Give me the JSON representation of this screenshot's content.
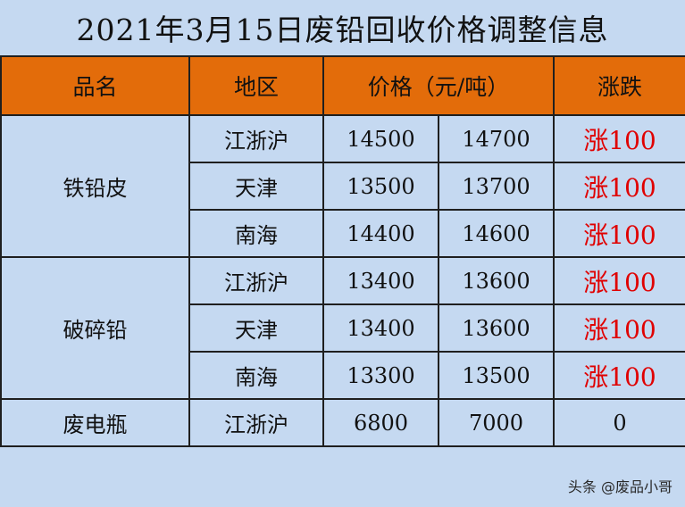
{
  "title": "2021年3月15日废铅回收价格调整信息",
  "headers": {
    "product": "品名",
    "region": "地区",
    "price": "价格（元/吨）",
    "change": "涨跌"
  },
  "groups": [
    {
      "product": "铁铅皮",
      "rows": [
        {
          "region": "江浙沪",
          "low": "14500",
          "high": "14700",
          "change": "涨100"
        },
        {
          "region": "天津",
          "low": "13500",
          "high": "13700",
          "change": "涨100"
        },
        {
          "region": "南海",
          "low": "14400",
          "high": "14600",
          "change": "涨100"
        }
      ]
    },
    {
      "product": "破碎铅",
      "rows": [
        {
          "region": "江浙沪",
          "low": "13400",
          "high": "13600",
          "change": "涨100"
        },
        {
          "region": "天津",
          "low": "13400",
          "high": "13600",
          "change": "涨100"
        },
        {
          "region": "南海",
          "low": "13300",
          "high": "13500",
          "change": "涨100"
        }
      ]
    },
    {
      "product": "废电瓶",
      "rows": [
        {
          "region": "江浙沪",
          "low": "6800",
          "high": "7000",
          "change": "0"
        }
      ]
    }
  ],
  "watermark": "头条 @废品小哥",
  "colors": {
    "header_bg": "#e36c0a",
    "body_bg": "#c5d9f1",
    "increase": "#e00000"
  }
}
